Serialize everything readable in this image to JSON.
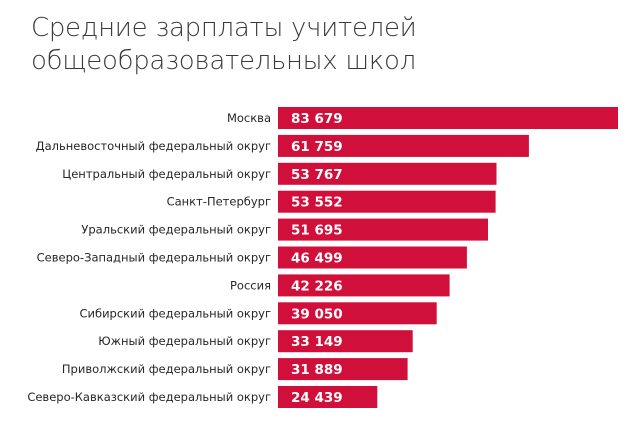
{
  "title_lines": [
    "Средние зарплаты учителей",
    "общеобразовательных школ"
  ],
  "colors": {
    "bar": "#d0103a",
    "value_text": "#ffffff",
    "label_text": "#262626",
    "title_text": "#3a3a3a"
  },
  "chart_data": {
    "type": "bar",
    "orientation": "horizontal",
    "title": "Средние зарплаты учителей общеобразовательных школ",
    "categories": [
      "Москва",
      "Дальневосточный федеральный округ",
      "Центральный федеральный округ",
      "Санкт-Петербург",
      "Уральский федеральный округ",
      "Северо-Западный федеральный округ",
      "Россия",
      "Сибирский федеральный округ",
      "Южный федеральный округ",
      "Приволжский федеральный округ",
      "Северо-Кавказский федеральный округ"
    ],
    "values": [
      83679,
      61759,
      53767,
      53552,
      51695,
      46499,
      42226,
      39050,
      33149,
      31889,
      24439
    ],
    "value_labels": [
      "83 679",
      "61 759",
      "53 767",
      "53 552",
      "51 695",
      "46 499",
      "42 226",
      "39 050",
      "33 149",
      "31 889",
      "24 439"
    ],
    "xlabel": "",
    "ylabel": "",
    "xlim": [
      0,
      83679
    ],
    "grid": false,
    "legend": "none"
  }
}
